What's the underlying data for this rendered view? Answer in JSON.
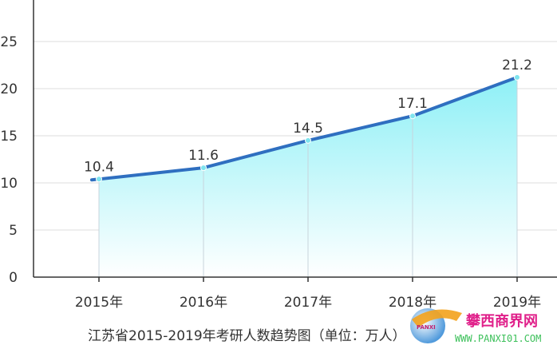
{
  "chart_data": {
    "type": "area",
    "title": "江苏省2015-2019年考研人数趋势图（单位：万人）",
    "categories": [
      "2015年",
      "2016年",
      "2017年",
      "2018年",
      "2019年"
    ],
    "values": [
      10.4,
      11.6,
      14.5,
      17.1,
      21.2
    ],
    "data_labels": [
      "10.4",
      "11.6",
      "14.5",
      "17.1",
      "21.2"
    ],
    "yticks": [
      "0",
      "5",
      "10",
      "15",
      "20",
      "25"
    ],
    "ylim": [
      0,
      30
    ],
    "grid": true,
    "colors": {
      "line": "#2f6fc0",
      "fill_top": "#8ef0f6",
      "fill_bottom": "#ffffff",
      "marker": "#7fe4ee"
    }
  },
  "watermark": {
    "text": "攀西商界网",
    "url_text": "WWW.PANXI01.COM",
    "logo_text": "PANXI"
  }
}
